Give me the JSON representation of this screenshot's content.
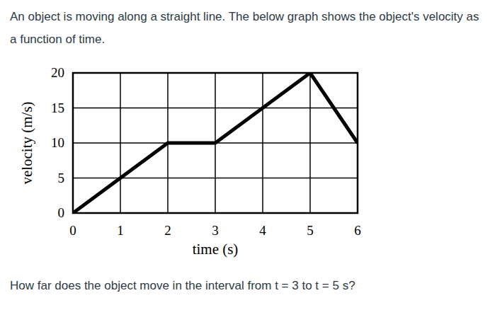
{
  "prompt": "An object is moving along a straight line.  The below graph shows the object's velocity as a function of time.",
  "question": "How far does the object move in the interval from t = 3 to t = 5 s?",
  "chart_data": {
    "type": "line",
    "x_label": "time (s)",
    "y_label": "velocity (m/s)",
    "x": [
      0,
      1,
      2,
      3,
      4,
      5,
      6
    ],
    "values": [
      0,
      5,
      10,
      10,
      15,
      20,
      10
    ],
    "color": "#000000",
    "xlim": [
      0,
      6
    ],
    "xticks": [
      0,
      1,
      2,
      3,
      4,
      5,
      6
    ],
    "ylim": [
      0,
      20
    ],
    "yticks": [
      0,
      5,
      10,
      15,
      20
    ],
    "grid": true
  }
}
